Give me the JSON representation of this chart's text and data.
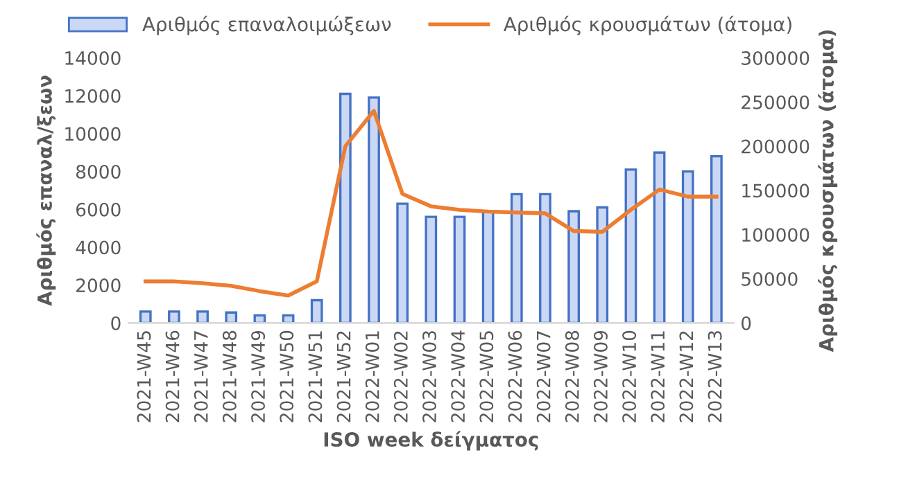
{
  "chart_data": {
    "type": "bar",
    "xlabel": "ISO week δείγματος",
    "ylabel": "Αριθμός επαναλ/ξεων",
    "y2label": "Αριθμός κρουσμάτων (άτομα)",
    "categories": [
      "2021-W45",
      "2021-W46",
      "2021-W47",
      "2021-W48",
      "2021-W49",
      "2021-W50",
      "2021-W51",
      "2021-W52",
      "2022-W01",
      "2022-W02",
      "2022-W03",
      "2022-W04",
      "2022-W05",
      "2022-W06",
      "2022-W07",
      "2022-W08",
      "2022-W09",
      "2022-W10",
      "2022-W11",
      "2022-W12",
      "2022-W13"
    ],
    "series": [
      {
        "name": "Αριθμός επαναλοιμώξεων",
        "color": "#4472c4",
        "values": [
          600,
          600,
          600,
          550,
          400,
          400,
          1200,
          12100,
          11900,
          6300,
          5600,
          5600,
          5900,
          6800,
          6800,
          5900,
          6100,
          8100,
          9000,
          8000,
          8800
        ]
      },
      {
        "name": "Αριθμός κρουσμάτων (άτομα)",
        "type": "line",
        "axis": "y2",
        "color": "#ed7d31",
        "values": [
          47000,
          47000,
          45000,
          42000,
          36000,
          31000,
          47000,
          200000,
          240000,
          146000,
          132000,
          128000,
          126000,
          125000,
          124000,
          104000,
          103000,
          128000,
          151000,
          143000,
          143000
        ]
      }
    ],
    "ylim": [
      0,
      14000
    ],
    "yticks": [
      0,
      2000,
      4000,
      6000,
      8000,
      10000,
      12000,
      14000
    ],
    "y2lim": [
      0,
      300000
    ],
    "y2ticks": [
      0,
      50000,
      100000,
      150000,
      200000,
      250000,
      300000
    ],
    "legend": "top",
    "grid": false
  }
}
